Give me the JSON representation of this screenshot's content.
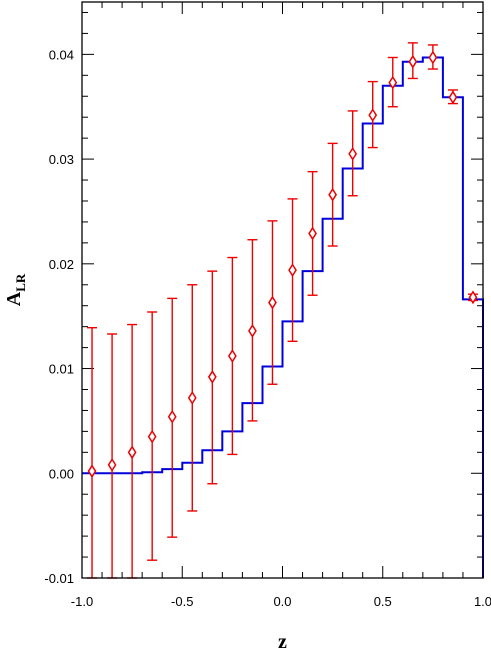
{
  "chart_data": {
    "type": "line",
    "xlabel": "z",
    "ylabel_main": "A",
    "ylabel_sub": "LR",
    "xlim": [
      -1.0,
      1.0
    ],
    "ylim": [
      -0.01,
      0.045
    ],
    "grid": false,
    "legend": "none",
    "x_ticks": [
      {
        "value": -1.0,
        "label": "-1.0"
      },
      {
        "value": -0.5,
        "label": "-0.5"
      },
      {
        "value": 0.0,
        "label": "0.0"
      },
      {
        "value": 0.5,
        "label": "0.5"
      },
      {
        "value": 1.0,
        "label": "1.0"
      }
    ],
    "y_ticks": [
      {
        "value": -0.01,
        "label": "-0.01"
      },
      {
        "value": 0.0,
        "label": "0.00"
      },
      {
        "value": 0.01,
        "label": "0.01"
      },
      {
        "value": 0.02,
        "label": "0.02"
      },
      {
        "value": 0.03,
        "label": "0.03"
      },
      {
        "value": 0.04,
        "label": "0.04"
      }
    ],
    "series": [
      {
        "kind": "step",
        "color": "#0000dd",
        "bin_edges": [
          -1.0,
          -0.9,
          -0.8,
          -0.7,
          -0.6,
          -0.5,
          -0.4,
          -0.3,
          -0.2,
          -0.1,
          0.0,
          0.1,
          0.2,
          0.3,
          0.4,
          0.5,
          0.6,
          0.7,
          0.8,
          0.9,
          1.0
        ],
        "values": [
          0.0,
          0.0,
          0.0,
          0.0001,
          0.0004,
          0.001,
          0.0022,
          0.004,
          0.0067,
          0.0102,
          0.0145,
          0.0193,
          0.0243,
          0.0291,
          0.0334,
          0.037,
          0.0393,
          0.0397,
          0.0359,
          0.0166
        ]
      },
      {
        "kind": "points-errorbars",
        "color": "#ee0000",
        "x": [
          -0.95,
          -0.85,
          -0.75,
          -0.65,
          -0.55,
          -0.45,
          -0.35,
          -0.25,
          -0.15,
          -0.05,
          0.05,
          0.15,
          0.25,
          0.35,
          0.45,
          0.55,
          0.65,
          0.75,
          0.85,
          0.95
        ],
        "y": [
          0.0002,
          0.0008,
          0.002,
          0.0035,
          0.0054,
          0.0072,
          0.0092,
          0.0112,
          0.0136,
          0.0163,
          0.0194,
          0.0229,
          0.0266,
          0.0305,
          0.0342,
          0.0373,
          0.0393,
          0.0397,
          0.0359,
          0.0168
        ],
        "yerr_low": [
          0.0102,
          0.0108,
          0.012,
          0.0118,
          0.0115,
          0.0108,
          0.0102,
          0.0094,
          0.0086,
          0.0078,
          0.0068,
          0.0059,
          0.0049,
          0.004,
          0.0031,
          0.0023,
          0.0016,
          0.0011,
          0.0006,
          0.0003
        ],
        "yerr_high": [
          0.0137,
          0.0125,
          0.0122,
          0.0119,
          0.0113,
          0.0108,
          0.0101,
          0.0094,
          0.0087,
          0.0078,
          0.0068,
          0.0059,
          0.0049,
          0.0041,
          0.0032,
          0.0024,
          0.0018,
          0.0012,
          0.0007,
          0.0003
        ]
      }
    ]
  }
}
